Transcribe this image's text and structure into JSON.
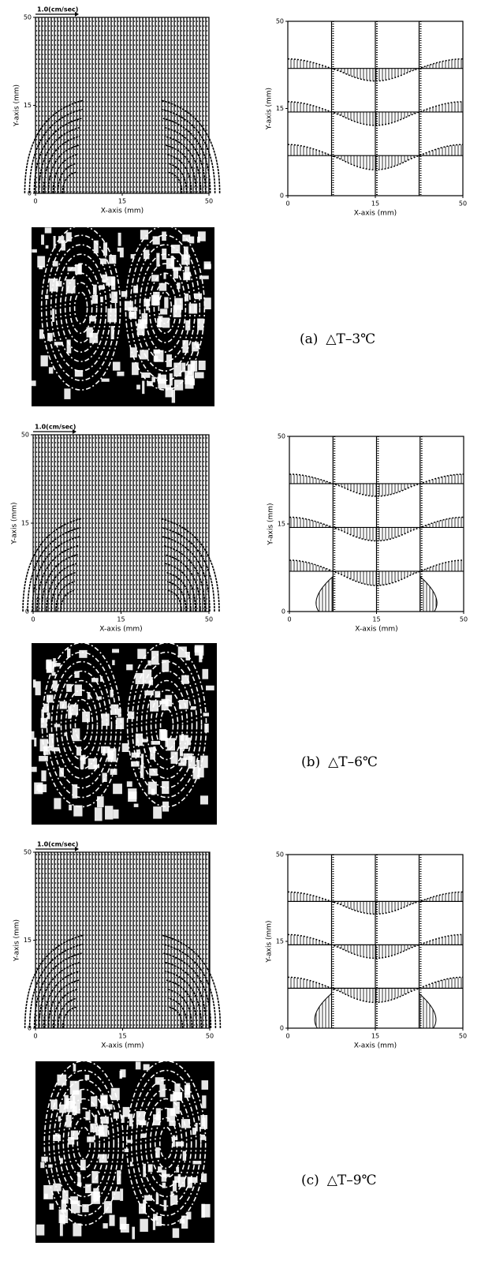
{
  "panels": [
    {
      "caption": {
        "label": "(a)",
        "condition": "△T–3℃"
      },
      "vector_plot": {
        "scale_label": "1.0(cm/sec)",
        "y_label": "Y-axis (mm)",
        "x_label": "X-axis (mm)",
        "yticks": [
          "0",
          "15",
          "50"
        ],
        "xticks": [
          "0",
          "15",
          "50"
        ]
      },
      "profile_plot": {
        "y_label": "Y-axis (mm)",
        "x_label": "X-axis (mm)",
        "yticks": [
          "0",
          "15",
          "50"
        ],
        "xticks": [
          "0",
          "15",
          "50"
        ]
      }
    },
    {
      "caption": {
        "label": "(b)",
        "condition": "△T–6℃"
      },
      "vector_plot": {
        "scale_label": "1.0(cm/sec)",
        "y_label": "Y-axis (mm)",
        "x_label": "X-axis (mm)",
        "yticks": [
          "0",
          "15",
          "50"
        ],
        "xticks": [
          "0",
          "15",
          "50"
        ]
      },
      "profile_plot": {
        "y_label": "Y-axis (mm)",
        "x_label": "X-axis (mm)",
        "yticks": [
          "0",
          "15",
          "50"
        ],
        "xticks": [
          "0",
          "15",
          "50"
        ]
      }
    },
    {
      "caption": {
        "label": "(c)",
        "condition": "△T–9℃"
      },
      "vector_plot": {
        "scale_label": "1.0(cm/sec)",
        "y_label": "Y-axis (mm)",
        "x_label": "X-axis (mm)",
        "yticks": [
          "0",
          "15",
          "50"
        ],
        "xticks": [
          "0",
          "15",
          "50"
        ]
      },
      "profile_plot": {
        "y_label": "Y-axis (mm)",
        "x_label": "X-axis (mm)",
        "yticks": [
          "0",
          "15",
          "50"
        ],
        "xticks": [
          "0",
          "15",
          "50"
        ]
      }
    }
  ]
}
